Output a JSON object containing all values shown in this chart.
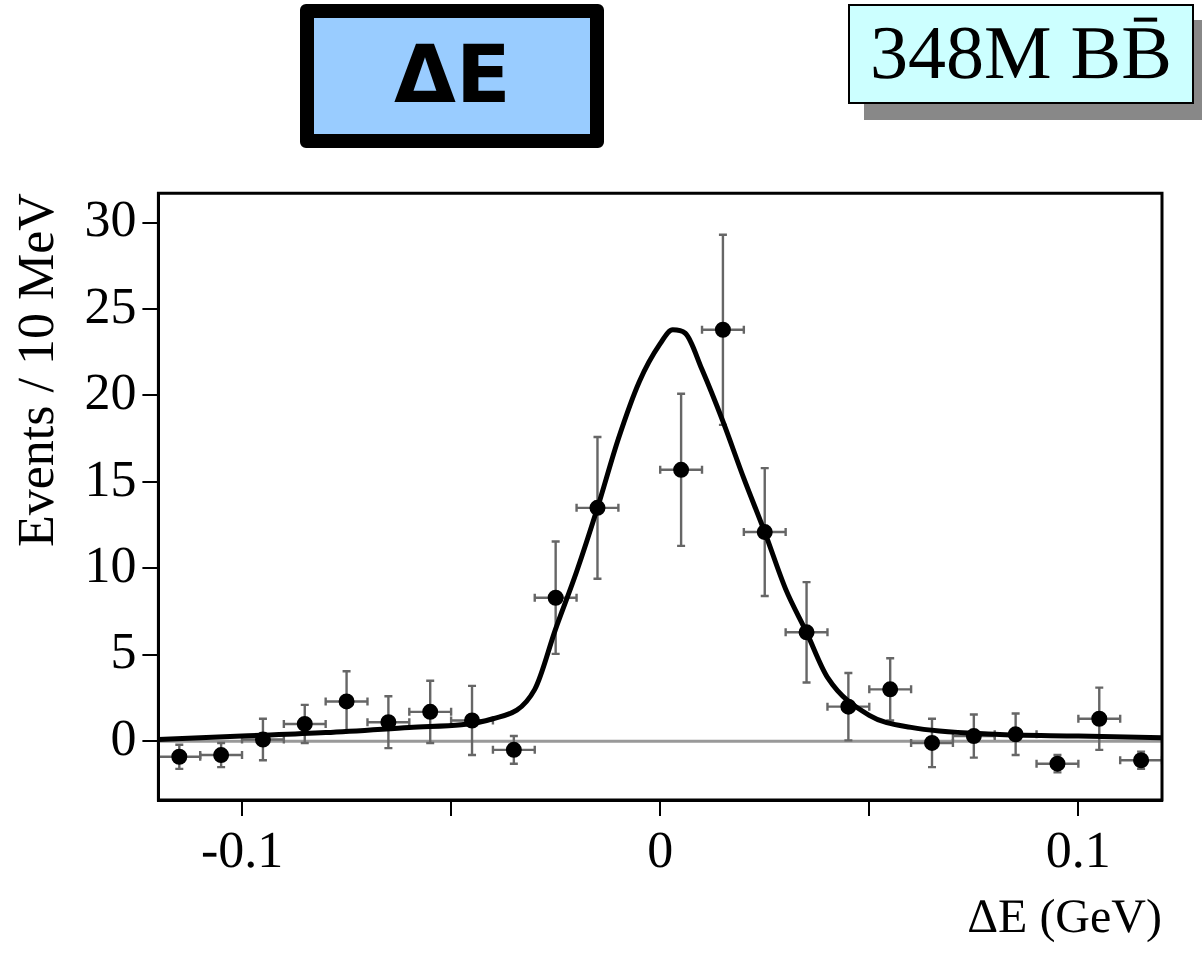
{
  "chart_data": {
    "type": "scatter",
    "xlabel": "ΔE (GeV)",
    "ylabel": "Events / 10 MeV",
    "annotations": [
      "ΔE",
      "348M BB̄"
    ],
    "xlim": [
      -0.12,
      0.12
    ],
    "ylim": [
      -3.4,
      31.7
    ],
    "xticks": [
      -0.1,
      {
        "value": -0.05,
        "label": null
      },
      0,
      {
        "value": 0.05,
        "label": null
      },
      0.1
    ],
    "yticks": [
      0,
      5,
      10,
      15,
      20,
      25,
      30
    ],
    "grid": false,
    "legend": false,
    "marker": "circle",
    "ref_lines": [
      {
        "axis": "y",
        "value": 0,
        "color": "#999999"
      }
    ],
    "series": [
      {
        "color": "#000000",
        "x": [
          -0.115,
          -0.105,
          -0.095,
          -0.085,
          -0.075,
          -0.065,
          -0.055,
          -0.045,
          -0.035,
          -0.025,
          -0.015,
          -0.005,
          0.005,
          0.015,
          0.025,
          0.035,
          0.045,
          0.055,
          0.065,
          0.075,
          0.085,
          0.095,
          0.105,
          0.115
        ],
        "values": [
          -0.9,
          -0.8,
          0.1,
          1.0,
          2.3,
          1.1,
          1.7,
          1.2,
          -0.5,
          8.3,
          13.5,
          null,
          15.7,
          23.8,
          12.1,
          6.3,
          2.0,
          3.0,
          -0.1,
          0.3,
          0.4,
          -1.3,
          1.3,
          -1.1
        ],
        "errors": [
          0.7,
          0.7,
          1.2,
          1.1,
          1.75,
          1.5,
          1.8,
          2.0,
          0.8,
          3.25,
          4.1,
          null,
          4.4,
          5.5,
          3.7,
          2.9,
          1.95,
          1.8,
          1.4,
          1.25,
          1.2,
          0.5,
          1.8,
          0.5
        ],
        "xerrors": [
          0.005,
          0.005,
          0.005,
          0.005,
          0.005,
          0.005,
          0.005,
          0.005,
          0.005,
          0.005,
          0.005,
          null,
          0.005,
          0.005,
          0.005,
          0.005,
          0.005,
          0.005,
          0.005,
          0.005,
          0.005,
          0.005,
          0.005,
          0.005
        ]
      },
      {
        "type": "line",
        "marker": "none",
        "color": "#000000",
        "x": [
          -0.12,
          -0.1,
          -0.08,
          -0.06,
          -0.04,
          -0.03,
          -0.025,
          -0.02,
          -0.015,
          -0.01,
          -0.005,
          0,
          0.003,
          0.006,
          0.01,
          0.015,
          0.02,
          0.025,
          0.03,
          0.035,
          0.04,
          0.05,
          0.06,
          0.08,
          0.1,
          0.12
        ],
        "values": [
          0.1,
          0.3,
          0.5,
          0.8,
          1.3,
          3.0,
          6.5,
          9.8,
          13.5,
          17.5,
          20.8,
          23.0,
          23.8,
          23.6,
          21.5,
          18.5,
          15.2,
          12.1,
          8.8,
          6.3,
          3.7,
          1.5,
          0.8,
          0.4,
          0.3,
          0.2
        ]
      }
    ]
  }
}
